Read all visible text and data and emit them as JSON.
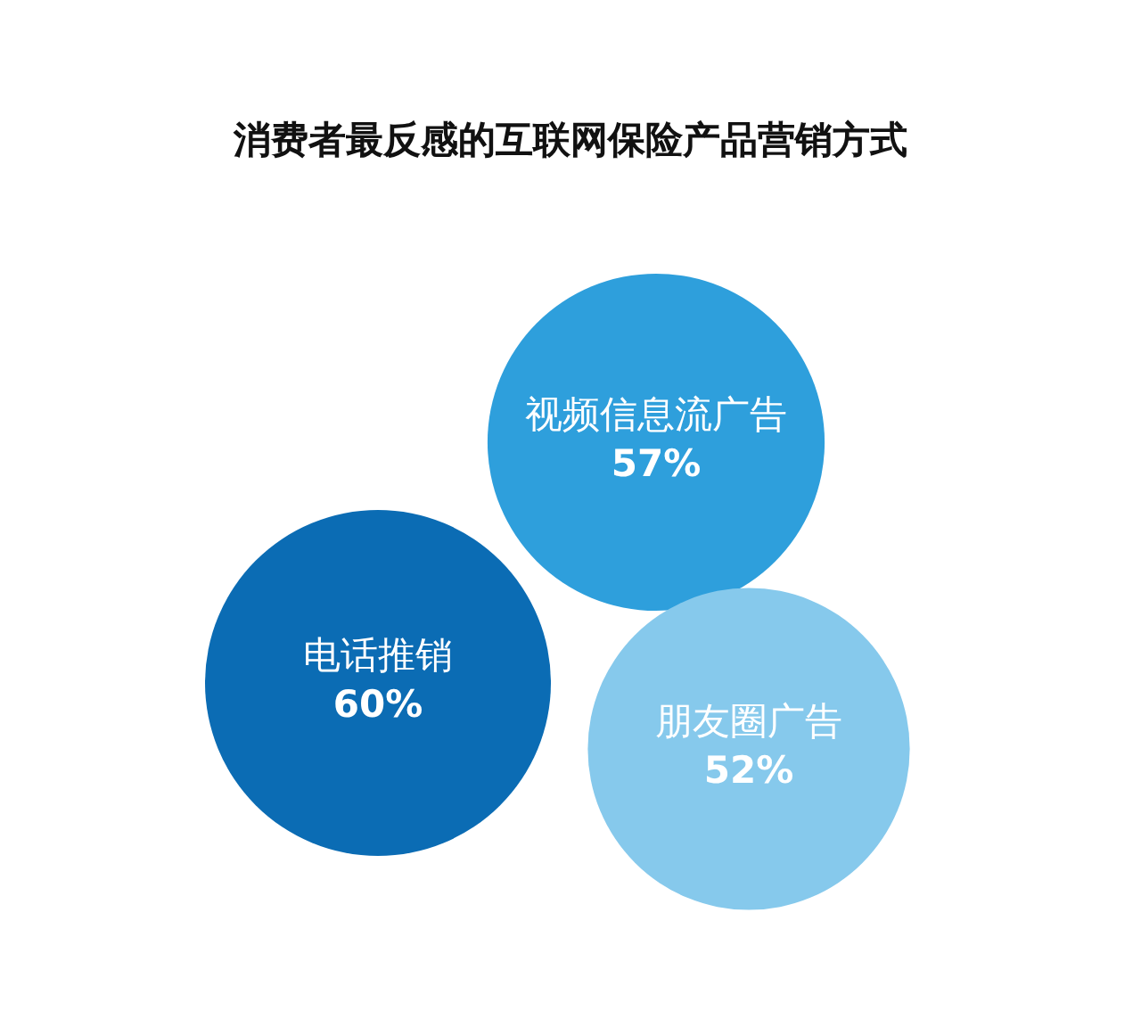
{
  "chart_data": {
    "type": "other",
    "title": "消费者最反感的互联网保险产品营销方式",
    "categories": [
      "视频信息流广告",
      "电话推销",
      "朋友圈广告"
    ],
    "values": [
      57,
      60,
      52
    ],
    "value_labels": [
      "57%",
      "60%",
      "52%"
    ],
    "colors": [
      "#2e9fdc",
      "#0b6cb4",
      "#86c9ec"
    ]
  }
}
